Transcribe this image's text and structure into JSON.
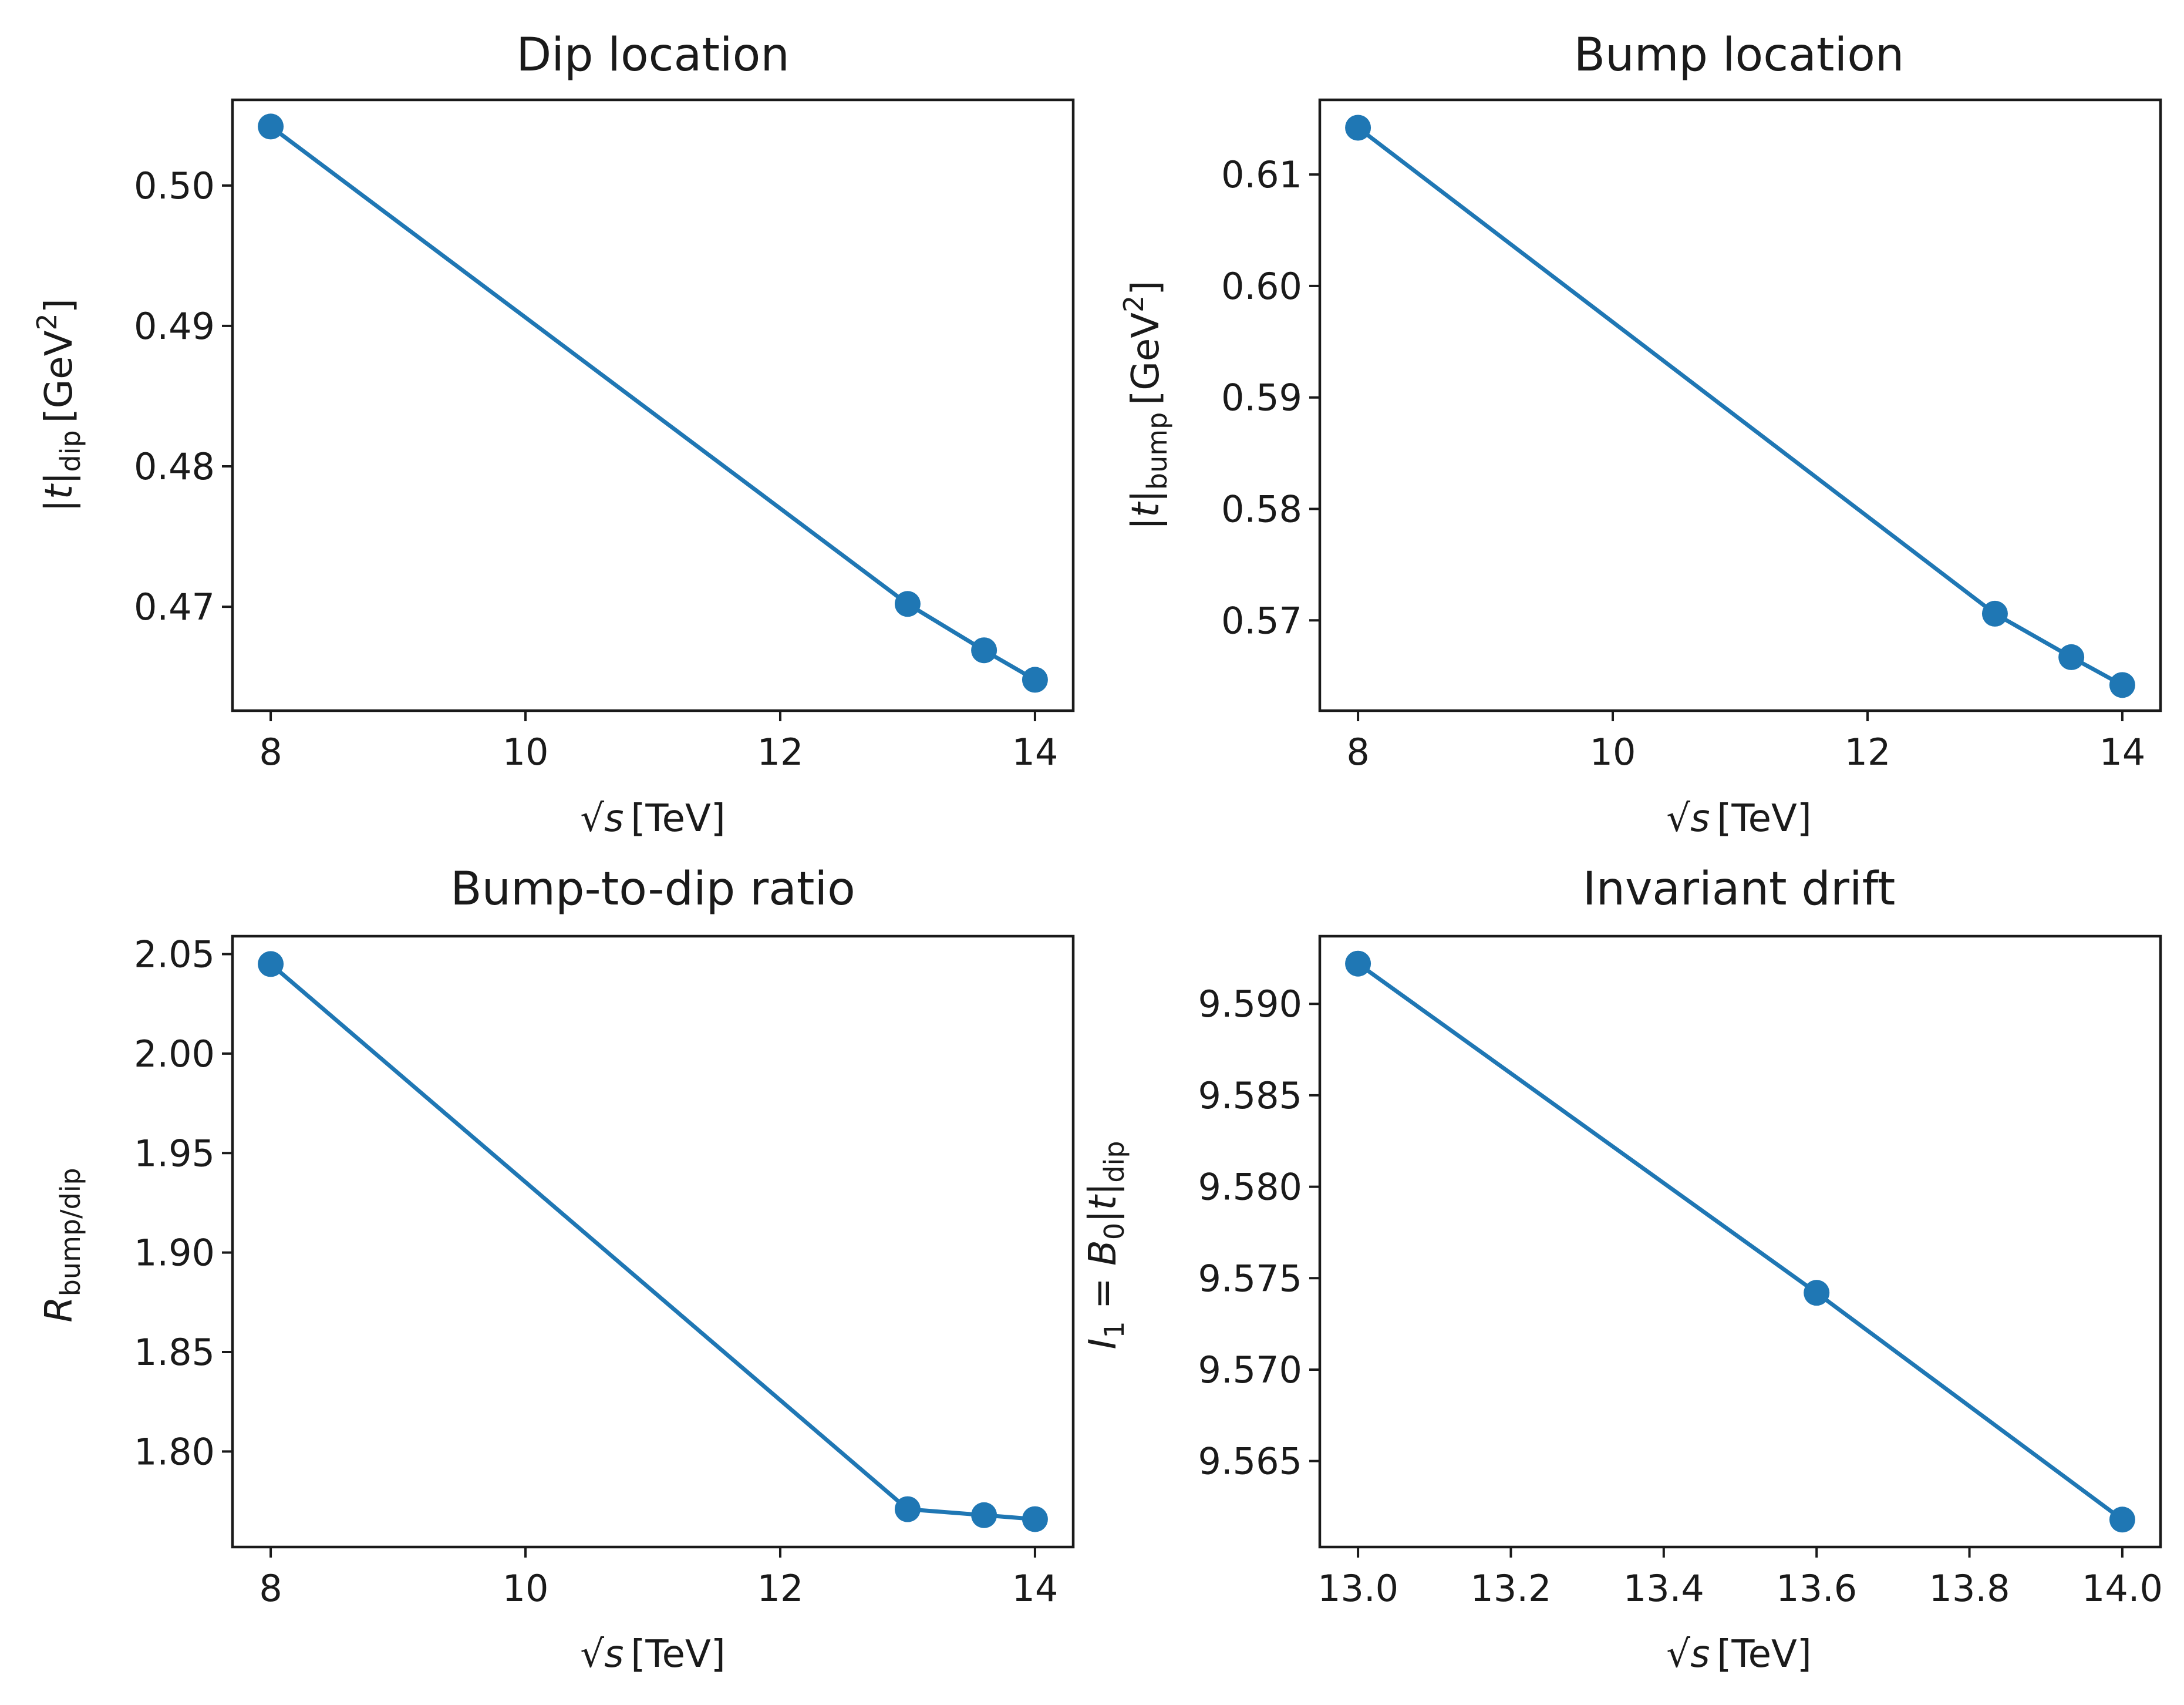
{
  "chart_data": [
    {
      "type": "line",
      "title": "Dip location",
      "xlabel": "√s [TeV]",
      "ylabel": "|t|dip [GeV2]",
      "x": [
        8,
        13,
        13.6,
        14
      ],
      "series": [
        {
          "values": [
            0.5042,
            0.4702,
            0.4669,
            0.4648
          ]
        }
      ],
      "xlim": [
        7.7,
        14.3
      ],
      "ylim": [
        0.4626,
        0.5061
      ],
      "xticks": [
        8,
        10,
        12,
        14
      ],
      "xtick_labels": [
        "8",
        "10",
        "12",
        "14"
      ],
      "yticks": [
        0.47,
        0.48,
        0.49,
        0.5
      ],
      "ytick_labels": [
        "0.47",
        "0.48",
        "0.49",
        "0.50"
      ],
      "grid": false,
      "color": "#1f77b4"
    },
    {
      "type": "line",
      "title": "Bump location",
      "xlabel": "√s [TeV]",
      "ylabel": "|t|bump [GeV2]",
      "x": [
        8,
        13,
        13.6,
        14
      ],
      "series": [
        {
          "values": [
            0.6142,
            0.5706,
            0.5667,
            0.5642
          ]
        }
      ],
      "xlim": [
        7.7,
        14.3
      ],
      "ylim": [
        0.5619,
        0.6167
      ],
      "xticks": [
        8,
        10,
        12,
        14
      ],
      "xtick_labels": [
        "8",
        "10",
        "12",
        "14"
      ],
      "yticks": [
        0.57,
        0.58,
        0.59,
        0.6,
        0.61
      ],
      "ytick_labels": [
        "0.57",
        "0.58",
        "0.59",
        "0.60",
        "0.61"
      ],
      "grid": false,
      "color": "#1f77b4"
    },
    {
      "type": "line",
      "title": "Bump-to-dip ratio",
      "xlabel": "√s [TeV]",
      "ylabel": "Rbump/dip",
      "x": [
        8,
        13,
        13.6,
        14
      ],
      "series": [
        {
          "values": [
            2.045,
            1.771,
            1.768,
            1.766
          ]
        }
      ],
      "xlim": [
        7.7,
        14.3
      ],
      "ylim": [
        1.752,
        2.059
      ],
      "xticks": [
        8,
        10,
        12,
        14
      ],
      "xtick_labels": [
        "8",
        "10",
        "12",
        "14"
      ],
      "yticks": [
        1.8,
        1.85,
        1.9,
        1.95,
        2.0,
        2.05
      ],
      "ytick_labels": [
        "1.80",
        "1.85",
        "1.90",
        "1.95",
        "2.00",
        "2.05"
      ],
      "grid": false,
      "color": "#1f77b4"
    },
    {
      "type": "line",
      "title": "Invariant drift",
      "xlabel": "√s [TeV]",
      "ylabel": "I1 = B0|t|dip",
      "x": [
        13.0,
        13.6,
        14.0
      ],
      "series": [
        {
          "values": [
            9.5922,
            9.5742,
            9.5618
          ]
        }
      ],
      "xlim": [
        12.95,
        14.05
      ],
      "ylim": [
        9.5603,
        9.5937
      ],
      "xticks": [
        13.0,
        13.2,
        13.4,
        13.6,
        13.8,
        14.0
      ],
      "xtick_labels": [
        "13.0",
        "13.2",
        "13.4",
        "13.6",
        "13.8",
        "14.0"
      ],
      "yticks": [
        9.565,
        9.57,
        9.575,
        9.58,
        9.585,
        9.59
      ],
      "ytick_labels": [
        "9.565",
        "9.570",
        "9.575",
        "9.580",
        "9.585",
        "9.590"
      ],
      "grid": false,
      "color": "#1f77b4"
    }
  ],
  "labels": {
    "dip": "dip",
    "bump": "bump",
    "ratio_sub": "bump/dip",
    "gev": "GeV",
    "power": "2",
    "tev": "[TeV]",
    "sqrt": "√",
    "s": "s",
    "t": "t",
    "bar": "|",
    "R": "R",
    "I": "I",
    "one": "1",
    "equals": " = ",
    "B": "B",
    "zero": "0"
  }
}
